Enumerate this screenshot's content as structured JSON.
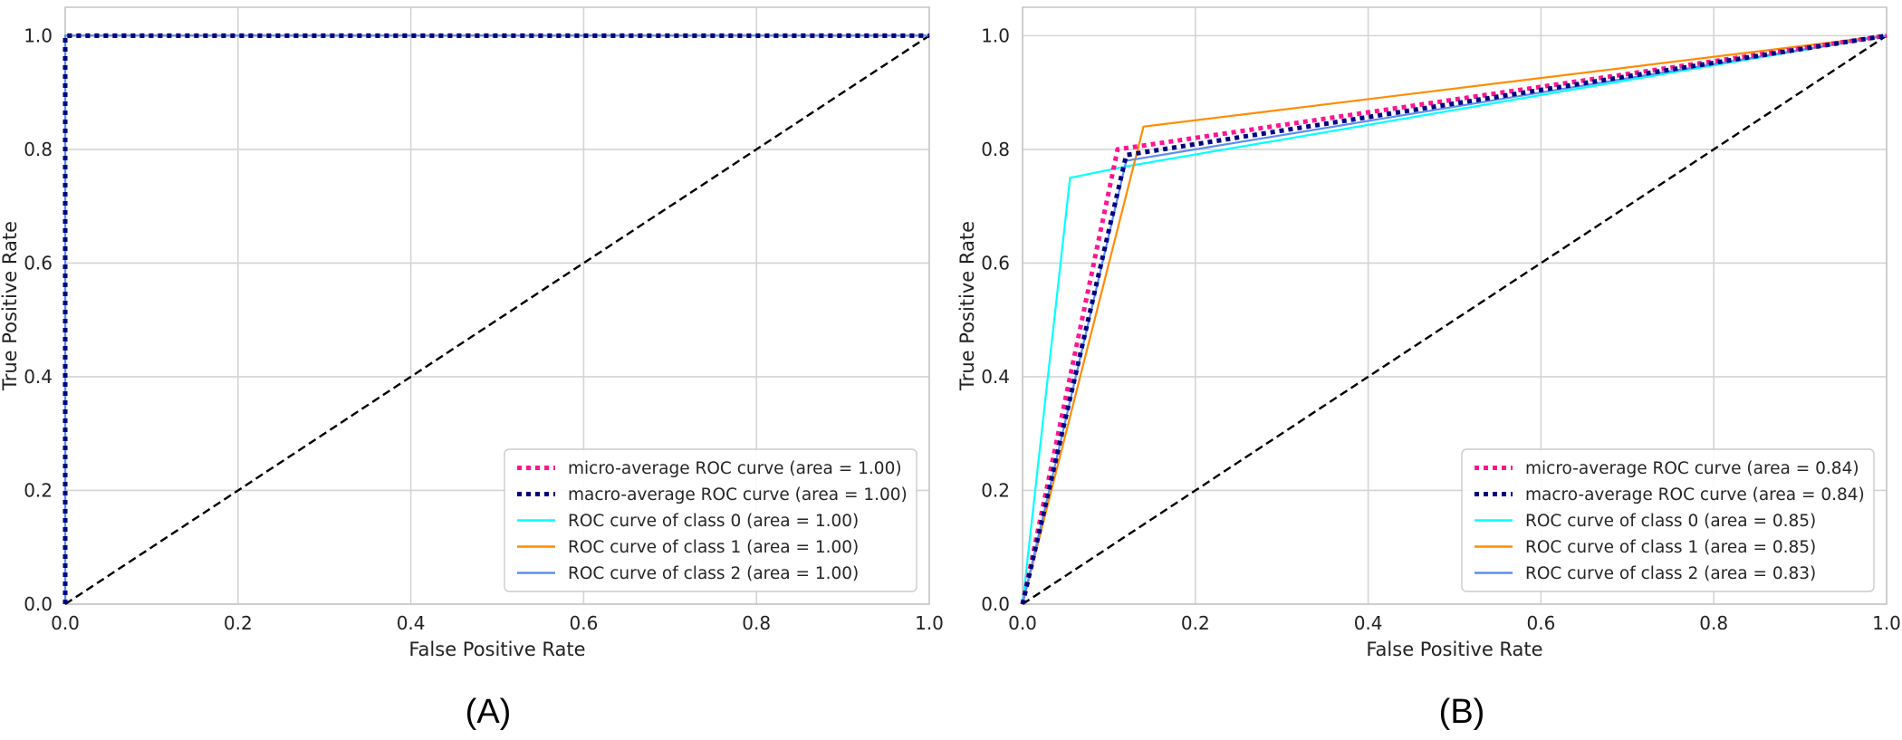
{
  "colors": {
    "micro": "#ff1493",
    "macro": "#000080",
    "class0": "#00ffff",
    "class1": "#ff8c00",
    "class2": "#5b8fef",
    "chance": "#000000",
    "grid": "#d4d4d4",
    "frame": "#c8c8c8"
  },
  "chart_data": [
    {
      "type": "line",
      "panel_label": "(A)",
      "title": "",
      "xlabel": "False Positive Rate",
      "ylabel": "True Positive Rate",
      "xlim": [
        0.0,
        1.0
      ],
      "ylim": [
        0.0,
        1.05
      ],
      "xticks": [
        "0.0",
        "0.2",
        "0.4",
        "0.6",
        "0.8",
        "1.0"
      ],
      "yticks": [
        "0.0",
        "0.2",
        "0.4",
        "0.6",
        "0.8",
        "1.0"
      ],
      "grid": true,
      "legend_position": "lower-right",
      "chance_line": {
        "x": [
          0,
          1
        ],
        "y": [
          0,
          1
        ]
      },
      "series": [
        {
          "name": "micro-average ROC curve (area = 1.00)",
          "style": "dotted",
          "color_key": "micro",
          "x": [
            0.0,
            0.0,
            1.0
          ],
          "y": [
            0.0,
            1.0,
            1.0
          ]
        },
        {
          "name": "macro-average ROC curve (area = 1.00)",
          "style": "dotted",
          "color_key": "macro",
          "x": [
            0.0,
            0.0,
            1.0
          ],
          "y": [
            0.0,
            1.0,
            1.0
          ]
        },
        {
          "name": "ROC curve of class 0 (area = 1.00)",
          "style": "solid",
          "color_key": "class0",
          "x": [
            0.0,
            0.0,
            1.0
          ],
          "y": [
            0.0,
            1.0,
            1.0
          ]
        },
        {
          "name": "ROC curve of class 1 (area = 1.00)",
          "style": "solid",
          "color_key": "class1",
          "x": [
            0.0,
            0.0,
            1.0
          ],
          "y": [
            0.0,
            1.0,
            1.0
          ]
        },
        {
          "name": "ROC curve of class 2 (area = 1.00)",
          "style": "solid",
          "color_key": "class2",
          "x": [
            0.0,
            0.0,
            1.0
          ],
          "y": [
            0.0,
            1.0,
            1.0
          ]
        }
      ]
    },
    {
      "type": "line",
      "panel_label": "(B)",
      "title": "",
      "xlabel": "False Positive Rate",
      "ylabel": "True Positive Rate",
      "xlim": [
        0.0,
        1.0
      ],
      "ylim": [
        0.0,
        1.05
      ],
      "xticks": [
        "0.0",
        "0.2",
        "0.4",
        "0.6",
        "0.8",
        "1.0"
      ],
      "yticks": [
        "0.0",
        "0.2",
        "0.4",
        "0.6",
        "0.8",
        "1.0"
      ],
      "grid": true,
      "legend_position": "lower-right",
      "chance_line": {
        "x": [
          0,
          1
        ],
        "y": [
          0,
          1
        ]
      },
      "series": [
        {
          "name": "micro-average ROC curve (area = 0.84)",
          "style": "dotted",
          "color_key": "micro",
          "x": [
            0.0,
            0.11,
            1.0
          ],
          "y": [
            0.0,
            0.8,
            1.0
          ]
        },
        {
          "name": "macro-average ROC curve (area = 0.84)",
          "style": "dotted",
          "color_key": "macro",
          "x": [
            0.0,
            0.12,
            1.0
          ],
          "y": [
            0.0,
            0.79,
            1.0
          ]
        },
        {
          "name": "ROC curve of class 0 (area = 0.85)",
          "style": "solid",
          "color_key": "class0",
          "x": [
            0.0,
            0.055,
            0.12,
            1.0
          ],
          "y": [
            0.0,
            0.75,
            0.77,
            1.0
          ]
        },
        {
          "name": "ROC curve of class 1 (area = 0.85)",
          "style": "solid",
          "color_key": "class1",
          "x": [
            0.0,
            0.14,
            1.0
          ],
          "y": [
            0.0,
            0.84,
            1.0
          ]
        },
        {
          "name": "ROC curve of class 2 (area = 0.83)",
          "style": "solid",
          "color_key": "class2",
          "x": [
            0.0,
            0.12,
            1.0
          ],
          "y": [
            0.0,
            0.78,
            1.0
          ]
        }
      ]
    }
  ]
}
